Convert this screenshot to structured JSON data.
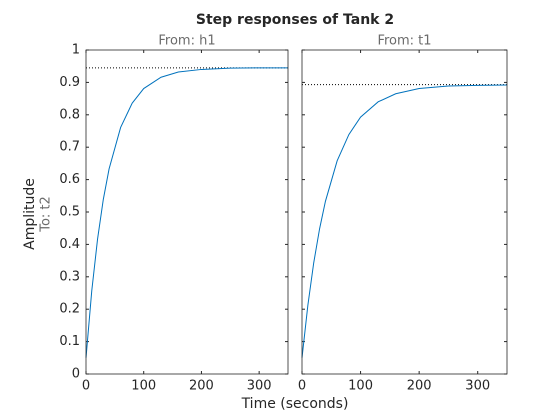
{
  "figure": {
    "title": "Step responses of Tank 2",
    "xlabel": "Time (seconds)",
    "ylabel": "Amplitude",
    "output_label": "To: t2"
  },
  "chart_data": [
    {
      "type": "line",
      "title": "From: h1",
      "x": [
        0,
        10,
        20,
        30,
        40,
        60,
        80,
        100,
        130,
        160,
        200,
        250,
        300,
        350
      ],
      "series": [
        {
          "color": "#0072bd",
          "values": [
            0.05,
            0.257,
            0.416,
            0.539,
            0.633,
            0.761,
            0.836,
            0.881,
            0.916,
            0.932,
            0.94,
            0.944,
            0.945,
            0.945
          ]
        }
      ],
      "steady_state": 0.945,
      "xlim": [
        0,
        350
      ],
      "ylim": [
        0,
        1
      ],
      "xticks": [
        0,
        100,
        200,
        300
      ],
      "yticks": [
        0,
        0.1,
        0.2,
        0.3,
        0.4,
        0.5,
        0.6,
        0.7,
        0.8,
        0.9,
        1
      ]
    },
    {
      "type": "line",
      "title": "From: t1",
      "x": [
        0,
        10,
        20,
        30,
        40,
        60,
        80,
        100,
        130,
        160,
        200,
        250,
        300,
        350
      ],
      "series": [
        {
          "color": "#0072bd",
          "values": [
            0.05,
            0.212,
            0.343,
            0.448,
            0.533,
            0.658,
            0.739,
            0.793,
            0.84,
            0.865,
            0.881,
            0.889,
            0.891,
            0.892
          ]
        }
      ],
      "steady_state": 0.893,
      "xlim": [
        0,
        350
      ],
      "ylim": [
        0,
        1
      ],
      "xticks": [
        0,
        100,
        200,
        300
      ],
      "yticks": [
        0,
        0.1,
        0.2,
        0.3,
        0.4,
        0.5,
        0.6,
        0.7,
        0.8,
        0.9,
        1
      ]
    }
  ]
}
